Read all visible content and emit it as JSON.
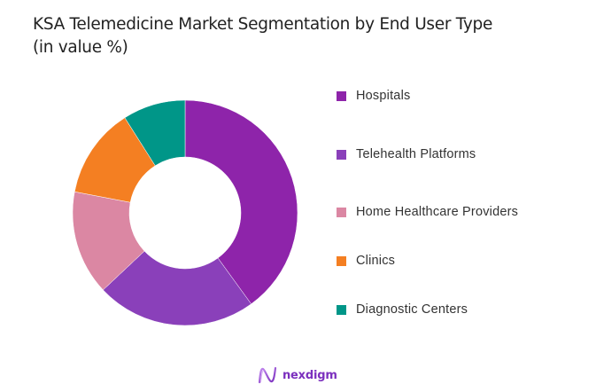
{
  "title": {
    "line1": "KSA Telemedicine Market Segmentation by End User Type",
    "line2": "(in value %)"
  },
  "chart_data": {
    "type": "pie",
    "variant": "donut",
    "title": "KSA Telemedicine Market Segmentation by End User Type (in value %)",
    "categories": [
      "Hospitals",
      "Telehealth Platforms",
      "Home Healthcare Providers",
      "Clinics",
      "Diagnostic Centers"
    ],
    "values": [
      40,
      23,
      15,
      13,
      9
    ],
    "colors": [
      "#8E24AA",
      "#8A40BA",
      "#DB87A3",
      "#F47F22",
      "#009688"
    ],
    "start_angle_deg": 0,
    "direction": "clockwise",
    "legend_position": "right",
    "data_labels": false
  },
  "legend": {
    "items": [
      {
        "label": "Hospitals",
        "color": "#8E24AA"
      },
      {
        "label": "Telehealth Platforms",
        "color": "#8A40BA"
      },
      {
        "label": "Home Healthcare Providers",
        "color": "#DB87A3"
      },
      {
        "label": "Clinics",
        "color": "#F47F22"
      },
      {
        "label": "Diagnostic Centers",
        "color": "#009688"
      }
    ]
  },
  "footer": {
    "logo_text": "nexdigm",
    "logo_icon": "wave-n-icon"
  }
}
